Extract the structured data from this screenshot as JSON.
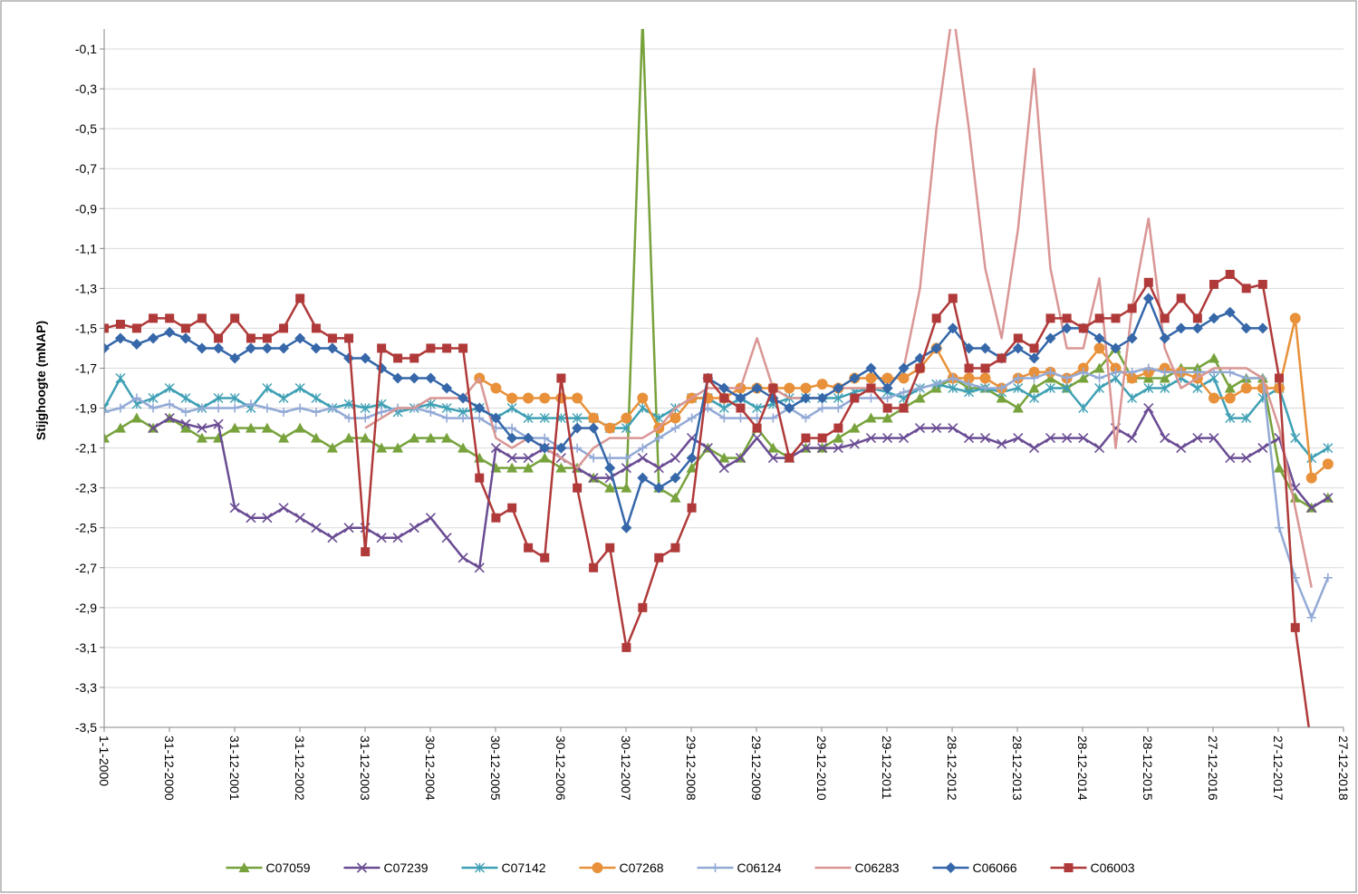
{
  "chart_data": {
    "type": "line",
    "y_label": "Stijghoogte (mNAP)",
    "x": [
      "2000-01-01",
      "2000-04-01",
      "2000-07-01",
      "2000-10-01",
      "2001-01-01",
      "2001-04-01",
      "2001-07-01",
      "2001-10-01",
      "2002-01-01",
      "2002-04-01",
      "2002-07-01",
      "2002-10-01",
      "2003-01-01",
      "2003-04-01",
      "2003-07-01",
      "2003-10-01",
      "2004-01-01",
      "2004-04-01",
      "2004-07-01",
      "2004-10-01",
      "2005-01-01",
      "2005-04-01",
      "2005-07-01",
      "2005-10-01",
      "2006-01-01",
      "2006-04-01",
      "2006-07-01",
      "2006-10-01",
      "2007-01-01",
      "2007-04-01",
      "2007-07-01",
      "2007-10-01",
      "2008-01-01",
      "2008-04-01",
      "2008-07-01",
      "2008-10-01",
      "2009-01-01",
      "2009-04-01",
      "2009-07-01",
      "2009-10-01",
      "2010-01-01",
      "2010-04-01",
      "2010-07-01",
      "2010-10-01",
      "2011-01-01",
      "2011-04-01",
      "2011-07-01",
      "2011-10-01",
      "2012-01-01",
      "2012-04-01",
      "2012-07-01",
      "2012-10-01",
      "2013-01-01",
      "2013-04-01",
      "2013-07-01",
      "2013-10-01",
      "2014-01-01",
      "2014-04-01",
      "2014-07-01",
      "2014-10-01",
      "2015-01-01",
      "2015-04-01",
      "2015-07-01",
      "2015-10-01",
      "2016-01-01",
      "2016-04-01",
      "2016-07-01",
      "2016-10-01",
      "2017-01-01",
      "2017-04-01",
      "2017-07-01",
      "2017-10-01",
      "2018-01-01",
      "2018-04-01",
      "2018-07-01",
      "2018-10-01"
    ],
    "series": [
      {
        "name": "C07059",
        "color": "#77a23c",
        "marker": "triangle",
        "values": [
          -2.05,
          -2.0,
          -1.95,
          -2.0,
          -1.95,
          -2.0,
          -2.05,
          -2.05,
          -2.0,
          -2.0,
          -2.0,
          -2.05,
          -2.0,
          -2.05,
          -2.1,
          -2.05,
          -2.05,
          -2.1,
          -2.1,
          -2.05,
          -2.05,
          -2.05,
          -2.1,
          -2.15,
          -2.2,
          -2.2,
          -2.2,
          -2.15,
          -2.2,
          -2.2,
          -2.25,
          -2.3,
          -2.3,
          0.05,
          -2.3,
          -2.35,
          -2.2,
          -2.1,
          -2.15,
          -2.15,
          -2.0,
          -2.1,
          -2.15,
          -2.1,
          -2.1,
          -2.05,
          -2.0,
          -1.95,
          -1.95,
          -1.9,
          -1.85,
          -1.8,
          -1.75,
          -1.8,
          -1.8,
          -1.85,
          -1.9,
          -1.8,
          -1.75,
          -1.8,
          -1.75,
          -1.7,
          -1.6,
          -1.75,
          -1.75,
          -1.75,
          -1.7,
          -1.7,
          -1.65,
          -1.8,
          -1.75,
          -1.75,
          -2.2,
          -2.35,
          -2.4,
          -2.35
        ]
      },
      {
        "name": "C07239",
        "color": "#6a4c93",
        "marker": "x",
        "values": [
          null,
          null,
          null,
          -2.0,
          -1.95,
          -1.98,
          -2.0,
          -1.98,
          -2.4,
          -2.45,
          -2.45,
          -2.4,
          -2.45,
          -2.5,
          -2.55,
          -2.5,
          -2.5,
          -2.55,
          -2.55,
          -2.5,
          -2.45,
          -2.55,
          -2.65,
          -2.7,
          -2.1,
          -2.15,
          -2.15,
          -2.1,
          -2.15,
          -2.2,
          -2.25,
          -2.25,
          -2.2,
          -2.15,
          -2.2,
          -2.15,
          -2.05,
          -2.1,
          -2.2,
          -2.15,
          -2.05,
          -2.15,
          -2.15,
          -2.1,
          -2.1,
          -2.1,
          -2.08,
          -2.05,
          -2.05,
          -2.05,
          -2.0,
          -2.0,
          -2.0,
          -2.05,
          -2.05,
          -2.08,
          -2.05,
          -2.1,
          -2.05,
          -2.05,
          -2.05,
          -2.1,
          -2.0,
          -2.05,
          -1.9,
          -2.05,
          -2.1,
          -2.05,
          -2.05,
          -2.15,
          -2.15,
          -2.1,
          -2.05,
          -2.3,
          -2.4,
          -2.35
        ]
      },
      {
        "name": "C07142",
        "color": "#3fa0b5",
        "marker": "asterisk",
        "values": [
          -1.9,
          -1.75,
          -1.88,
          -1.85,
          -1.8,
          -1.85,
          -1.9,
          -1.85,
          -1.85,
          -1.9,
          -1.8,
          -1.85,
          -1.8,
          -1.85,
          -1.9,
          -1.88,
          -1.9,
          -1.88,
          -1.92,
          -1.9,
          -1.88,
          -1.9,
          -1.92,
          -1.9,
          -1.95,
          -1.9,
          -1.95,
          -1.95,
          -1.95,
          -1.95,
          -1.95,
          -2.0,
          -2.0,
          -1.9,
          -1.95,
          -1.9,
          -1.85,
          -1.85,
          -1.9,
          -1.85,
          -1.9,
          -1.88,
          -1.85,
          -1.85,
          -1.85,
          -1.85,
          -1.82,
          -1.8,
          -1.82,
          -1.85,
          -1.8,
          -1.78,
          -1.8,
          -1.82,
          -1.8,
          -1.82,
          -1.8,
          -1.85,
          -1.8,
          -1.8,
          -1.9,
          -1.8,
          -1.75,
          -1.85,
          -1.8,
          -1.8,
          -1.75,
          -1.8,
          -1.75,
          -1.95,
          -1.95,
          -1.85,
          -1.8,
          -2.05,
          -2.15,
          -2.1
        ]
      },
      {
        "name": "C07268",
        "color": "#e8913a",
        "marker": "circle",
        "values": [
          null,
          null,
          null,
          null,
          null,
          null,
          null,
          null,
          null,
          null,
          null,
          null,
          null,
          null,
          null,
          null,
          null,
          null,
          null,
          null,
          null,
          null,
          null,
          -1.75,
          -1.8,
          -1.85,
          -1.85,
          -1.85,
          -1.85,
          -1.85,
          -1.95,
          -2.0,
          -1.95,
          -1.85,
          -2.0,
          -1.95,
          -1.85,
          -1.85,
          -1.85,
          -1.8,
          -1.8,
          -1.8,
          -1.8,
          -1.8,
          -1.78,
          -1.8,
          -1.75,
          -1.75,
          -1.75,
          -1.75,
          -1.7,
          -1.6,
          -1.75,
          -1.75,
          -1.75,
          -1.8,
          -1.75,
          -1.72,
          -1.72,
          -1.75,
          -1.7,
          -1.6,
          -1.7,
          -1.75,
          -1.72,
          -1.7,
          -1.72,
          -1.75,
          -1.85,
          -1.85,
          -1.8,
          -1.8,
          -1.8,
          -1.45,
          -2.25,
          -2.18
        ]
      },
      {
        "name": "C06124",
        "color": "#93aad6",
        "marker": "plus",
        "values": [
          -1.92,
          -1.9,
          -1.85,
          -1.9,
          -1.88,
          -1.92,
          -1.9,
          -1.9,
          -1.9,
          -1.88,
          -1.9,
          -1.92,
          -1.9,
          -1.92,
          -1.9,
          -1.95,
          -1.95,
          -1.92,
          -1.9,
          -1.9,
          -1.92,
          -1.95,
          -1.95,
          -1.95,
          -2.0,
          -2.0,
          -2.05,
          -2.05,
          -2.1,
          -2.1,
          -2.15,
          -2.15,
          -2.15,
          -2.1,
          -2.05,
          -2.0,
          -1.95,
          -1.9,
          -1.95,
          -1.95,
          -1.95,
          -1.95,
          -1.9,
          -1.95,
          -1.9,
          -1.9,
          -1.85,
          -1.85,
          -1.85,
          -1.82,
          -1.8,
          -1.78,
          -1.75,
          -1.78,
          -1.8,
          -1.8,
          -1.75,
          -1.75,
          -1.72,
          -1.75,
          -1.72,
          -1.75,
          -1.72,
          -1.72,
          -1.7,
          -1.72,
          -1.72,
          -1.72,
          -1.72,
          -1.72,
          -1.75,
          -1.75,
          -2.5,
          -2.75,
          -2.95,
          -2.75
        ]
      },
      {
        "name": "C06283",
        "color": "#d99694",
        "marker": "none",
        "values": [
          null,
          null,
          null,
          null,
          null,
          null,
          null,
          null,
          null,
          null,
          null,
          null,
          null,
          null,
          null,
          null,
          -2.0,
          -1.95,
          -1.9,
          -1.9,
          -1.85,
          -1.85,
          -1.85,
          -1.75,
          -2.05,
          -2.1,
          -2.05,
          -2.1,
          -2.15,
          -2.2,
          -2.1,
          -2.05,
          -2.05,
          -2.05,
          -2.0,
          -1.9,
          -1.85,
          -1.8,
          -1.8,
          -1.8,
          -1.55,
          -1.8,
          -1.85,
          -1.85,
          -1.85,
          -1.8,
          -1.8,
          -1.8,
          -1.8,
          -1.7,
          -1.3,
          -0.5,
          0.1,
          -0.5,
          -1.2,
          -1.55,
          -1.0,
          -0.2,
          -1.2,
          -1.6,
          -1.6,
          -1.25,
          -2.1,
          -1.4,
          -0.95,
          -1.6,
          -1.8,
          -1.75,
          -1.7,
          -1.7,
          -1.7,
          -1.75,
          -2.0,
          -2.4,
          -2.8,
          null
        ]
      },
      {
        "name": "C06066",
        "color": "#3567a9",
        "marker": "diamond",
        "values": [
          -1.6,
          -1.55,
          -1.58,
          -1.55,
          -1.52,
          -1.55,
          -1.6,
          -1.6,
          -1.65,
          -1.6,
          -1.6,
          -1.6,
          -1.55,
          -1.6,
          -1.6,
          -1.65,
          -1.65,
          -1.7,
          -1.75,
          -1.75,
          -1.75,
          -1.8,
          -1.85,
          -1.9,
          -1.95,
          -2.05,
          -2.05,
          -2.1,
          -2.1,
          -2.0,
          -2.0,
          -2.2,
          -2.5,
          -2.25,
          -2.3,
          -2.25,
          -2.15,
          -1.75,
          -1.8,
          -1.85,
          -1.8,
          -1.85,
          -1.9,
          -1.85,
          -1.85,
          -1.8,
          -1.75,
          -1.7,
          -1.8,
          -1.7,
          -1.65,
          -1.6,
          -1.5,
          -1.6,
          -1.6,
          -1.65,
          -1.6,
          -1.65,
          -1.55,
          -1.5,
          -1.5,
          -1.55,
          -1.6,
          -1.55,
          -1.35,
          -1.55,
          -1.5,
          -1.5,
          -1.45,
          -1.42,
          -1.5,
          -1.5,
          null,
          null,
          null,
          null
        ]
      },
      {
        "name": "C06003",
        "color": "#b03a3a",
        "marker": "square",
        "values": [
          -1.5,
          -1.48,
          -1.5,
          -1.45,
          -1.45,
          -1.5,
          -1.45,
          -1.55,
          -1.45,
          -1.55,
          -1.55,
          -1.5,
          -1.35,
          -1.5,
          -1.55,
          -1.55,
          -2.62,
          -1.6,
          -1.65,
          -1.65,
          -1.6,
          -1.6,
          -1.6,
          -2.25,
          -2.45,
          -2.4,
          -2.6,
          -2.65,
          -1.75,
          -2.3,
          -2.7,
          -2.6,
          -3.1,
          -2.9,
          -2.65,
          -2.6,
          -2.4,
          -1.75,
          -1.85,
          -1.9,
          -2.0,
          -1.8,
          -2.15,
          -2.05,
          -2.05,
          -2.0,
          -1.85,
          -1.8,
          -1.9,
          -1.9,
          -1.7,
          -1.45,
          -1.35,
          -1.7,
          -1.7,
          -1.65,
          -1.55,
          -1.6,
          -1.45,
          -1.45,
          -1.5,
          -1.45,
          -1.45,
          -1.4,
          -1.27,
          -1.45,
          -1.35,
          -1.45,
          -1.28,
          -1.23,
          -1.3,
          -1.28,
          -1.75,
          -3.0,
          -3.6,
          null
        ]
      }
    ],
    "xlim": [
      "2000-01-01",
      "2018-12-27"
    ],
    "xticks": [
      {
        "value": "2000-01-01",
        "label": "1-1-2000"
      },
      {
        "value": "2000-12-31",
        "label": "31-12-2000"
      },
      {
        "value": "2001-12-31",
        "label": "31-12-2001"
      },
      {
        "value": "2002-12-31",
        "label": "31-12-2002"
      },
      {
        "value": "2003-12-31",
        "label": "31-12-2003"
      },
      {
        "value": "2004-12-30",
        "label": "30-12-2004"
      },
      {
        "value": "2005-12-30",
        "label": "30-12-2005"
      },
      {
        "value": "2006-12-30",
        "label": "30-12-2006"
      },
      {
        "value": "2007-12-30",
        "label": "30-12-2007"
      },
      {
        "value": "2008-12-29",
        "label": "29-12-2008"
      },
      {
        "value": "2009-12-29",
        "label": "29-12-2009"
      },
      {
        "value": "2010-12-29",
        "label": "29-12-2010"
      },
      {
        "value": "2011-12-29",
        "label": "29-12-2011"
      },
      {
        "value": "2012-12-28",
        "label": "28-12-2012"
      },
      {
        "value": "2013-12-28",
        "label": "28-12-2013"
      },
      {
        "value": "2014-12-28",
        "label": "28-12-2014"
      },
      {
        "value": "2015-12-28",
        "label": "28-12-2015"
      },
      {
        "value": "2016-12-27",
        "label": "27-12-2016"
      },
      {
        "value": "2017-12-27",
        "label": "27-12-2017"
      },
      {
        "value": "2018-12-27",
        "label": "27-12-2018"
      }
    ],
    "ylim": [
      -3.5,
      0
    ],
    "yticks": [
      {
        "value": -3.5,
        "label": "-3,5"
      },
      {
        "value": -3.3,
        "label": "-3,3"
      },
      {
        "value": -3.1,
        "label": "-3,1"
      },
      {
        "value": -2.9,
        "label": "-2,9"
      },
      {
        "value": -2.7,
        "label": "-2,7"
      },
      {
        "value": -2.5,
        "label": "-2,5"
      },
      {
        "value": -2.3,
        "label": "-2,3"
      },
      {
        "value": -2.1,
        "label": "-2,1"
      },
      {
        "value": -1.9,
        "label": "-1,9"
      },
      {
        "value": -1.7,
        "label": "-1,7"
      },
      {
        "value": -1.5,
        "label": "-1,5"
      },
      {
        "value": -1.3,
        "label": "-1,3"
      },
      {
        "value": -1.1,
        "label": "-1,1"
      },
      {
        "value": -0.9,
        "label": "-0,9"
      },
      {
        "value": -0.7,
        "label": "-0,7"
      },
      {
        "value": -0.5,
        "label": "-0,5"
      },
      {
        "value": -0.3,
        "label": "-0,3"
      },
      {
        "value": -0.1,
        "label": "-0,1"
      }
    ],
    "grid": true,
    "legend": "bottom"
  }
}
